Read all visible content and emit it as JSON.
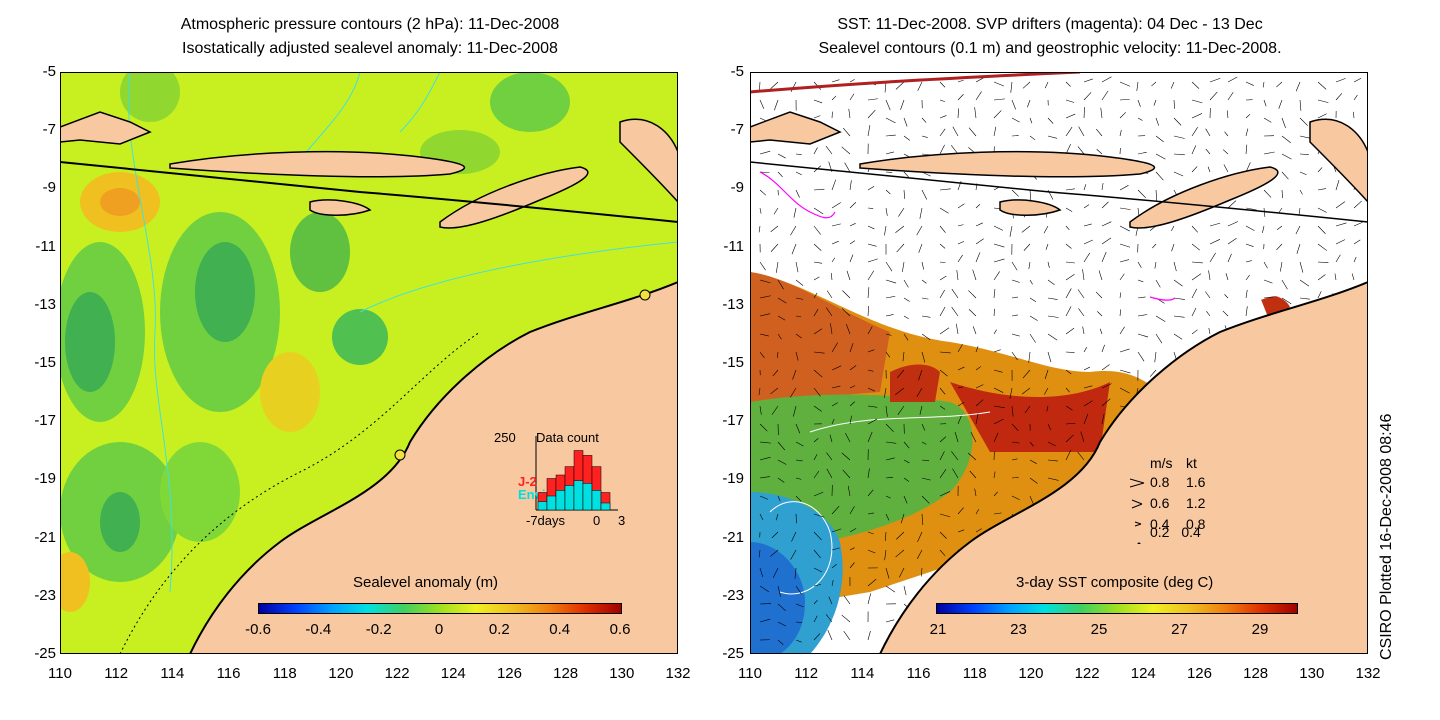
{
  "left_panel": {
    "title_line1": "Atmospheric pressure contours (2 hPa): 11-Dec-2008",
    "title_line2": "Isostatically adjusted sealevel anomaly: 11-Dec-2008",
    "colorbar_label": "Sealevel anomaly (m)",
    "colorbar_ticks": [
      "-0.6",
      "-0.4",
      "-0.2",
      "0",
      "0.2",
      "0.4",
      "0.6"
    ],
    "inset": {
      "title": "Data count",
      "y_tick": "250",
      "series": [
        {
          "name": "J-2",
          "color": "#ff2020"
        },
        {
          "name": "Envi",
          "color": "#00e0e0"
        }
      ],
      "x_ticks": [
        "-7days",
        "0",
        "3"
      ],
      "j2_values": [
        0.25,
        0.45,
        0.5,
        0.62,
        0.85,
        0.78,
        0.62,
        0.25
      ],
      "envi_values": [
        0.12,
        0.2,
        0.28,
        0.35,
        0.42,
        0.38,
        0.28,
        0.1
      ]
    }
  },
  "right_panel": {
    "title_line1": "SST: 11-Dec-2008. SVP drifters (magenta): 04 Dec - 13 Dec",
    "title_line2": "Sealevel contours (0.1 m) and geostrophic velocity: 11-Dec-2008.",
    "colorbar_label": "3-day SST composite (deg C)",
    "colorbar_ticks": [
      "21",
      "23",
      "25",
      "27",
      "29"
    ],
    "velocity_legend": {
      "header_ms": "m/s",
      "header_kt": "kt",
      "rows": [
        {
          "ms": "0.8",
          "kt": "1.6"
        },
        {
          "ms": "0.6",
          "kt": "1.2"
        },
        {
          "ms": "0.4",
          "kt": "0.8"
        },
        {
          "ms": "0.2",
          "kt": "0.4"
        }
      ]
    }
  },
  "axes": {
    "y_ticks": [
      "-5",
      "-7",
      "-9",
      "-11",
      "-13",
      "-15",
      "-17",
      "-19",
      "-21",
      "-23",
      "-25"
    ],
    "x_ticks": [
      "110",
      "112",
      "114",
      "116",
      "118",
      "120",
      "122",
      "124",
      "126",
      "128",
      "130",
      "132"
    ]
  },
  "side_text": "CSIRO Plotted 16-Dec-2008 08:46",
  "colors": {
    "land": "#f8c8a0",
    "sea_level_base": "#c8f020",
    "sea_level_low": "#50c040",
    "sea_level_high": "#f0a020",
    "cloud": "#ffffff",
    "sst_warm": "#e06010",
    "sst_cool": "#3090e0",
    "contour": "#40e0e0",
    "drifter": "#ff00ff"
  }
}
